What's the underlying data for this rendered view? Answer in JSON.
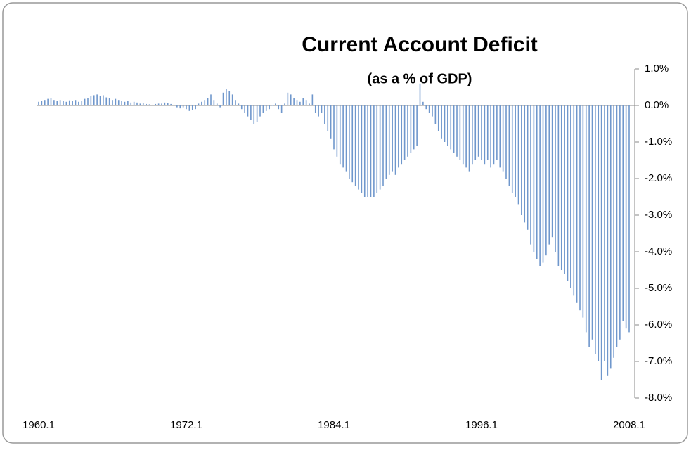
{
  "chart_data": {
    "type": "bar",
    "title": "Current Account Deficit",
    "subtitle": "(as a % of GDP)",
    "color": "#6f97cc",
    "categories": [
      "1960.1",
      null,
      null,
      null,
      null,
      null,
      null,
      null,
      null,
      null,
      null,
      null,
      null,
      null,
      null,
      null,
      null,
      null,
      null,
      null,
      null,
      null,
      null,
      null,
      null,
      null,
      null,
      null,
      null,
      null,
      null,
      null,
      null,
      null,
      null,
      null,
      null,
      null,
      null,
      null,
      null,
      null,
      null,
      null,
      null,
      null,
      null,
      null,
      "1972.1",
      null,
      null,
      null,
      null,
      null,
      null,
      null,
      null,
      null,
      null,
      null,
      null,
      null,
      null,
      null,
      null,
      null,
      null,
      null,
      null,
      null,
      null,
      null,
      null,
      null,
      null,
      null,
      null,
      null,
      null,
      null,
      null,
      null,
      null,
      null,
      null,
      null,
      null,
      null,
      null,
      null,
      null,
      null,
      null,
      null,
      null,
      null,
      "1984.1",
      null,
      null,
      null,
      null,
      null,
      null,
      null,
      null,
      null,
      null,
      null,
      null,
      null,
      null,
      null,
      null,
      null,
      null,
      null,
      null,
      null,
      null,
      null,
      null,
      null,
      null,
      null,
      null,
      null,
      null,
      null,
      null,
      null,
      null,
      null,
      null,
      null,
      null,
      null,
      null,
      null,
      null,
      null,
      null,
      null,
      null,
      null,
      "1996.1",
      null,
      null,
      null,
      null,
      null,
      null,
      null,
      null,
      null,
      null,
      null,
      null,
      null,
      null,
      null,
      null,
      null,
      null,
      null,
      null,
      null,
      null,
      null,
      null,
      null,
      null,
      null,
      null,
      null,
      null,
      null,
      null,
      null,
      null,
      null,
      null,
      null,
      null,
      null,
      null,
      null,
      null,
      null,
      null,
      null,
      null,
      null,
      "2008.1"
    ],
    "values": [
      0.1,
      0.12,
      0.15,
      0.18,
      0.2,
      0.15,
      0.12,
      0.15,
      0.12,
      0.1,
      0.14,
      0.12,
      0.15,
      0.1,
      0.12,
      0.18,
      0.2,
      0.25,
      0.28,
      0.3,
      0.25,
      0.28,
      0.22,
      0.2,
      0.15,
      0.18,
      0.15,
      0.12,
      0.1,
      0.12,
      0.08,
      0.1,
      0.08,
      0.05,
      0.06,
      0.04,
      0.03,
      0.02,
      0.04,
      0.05,
      0.05,
      0.08,
      0.06,
      0.04,
      0.02,
      -0.05,
      -0.08,
      -0.05,
      -0.1,
      -0.15,
      -0.12,
      -0.1,
      0.05,
      0.1,
      0.15,
      0.2,
      0.3,
      0.15,
      0.05,
      -0.05,
      0.35,
      0.45,
      0.4,
      0.3,
      0.15,
      0.05,
      -0.1,
      -0.2,
      -0.3,
      -0.4,
      -0.5,
      -0.45,
      -0.3,
      -0.2,
      -0.15,
      -0.1,
      0,
      0.05,
      -0.1,
      -0.2,
      0.05,
      0.35,
      0.3,
      0.2,
      0.15,
      0.1,
      0.2,
      0.15,
      0.05,
      0.3,
      -0.2,
      -0.3,
      -0.2,
      -0.5,
      -0.7,
      -0.9,
      -1.2,
      -1.4,
      -1.6,
      -1.7,
      -1.8,
      -2.0,
      -2.1,
      -2.2,
      -2.3,
      -2.4,
      -2.5,
      -2.5,
      -2.5,
      -2.5,
      -2.4,
      -2.3,
      -2.2,
      -2.0,
      -1.9,
      -1.8,
      -1.9,
      -1.7,
      -1.6,
      -1.5,
      -1.4,
      -1.3,
      -1.2,
      -1.1,
      0.6,
      0.1,
      -0.1,
      -0.2,
      -0.3,
      -0.5,
      -0.7,
      -0.9,
      -1.0,
      -1.1,
      -1.2,
      -1.3,
      -1.4,
      -1.5,
      -1.6,
      -1.7,
      -1.8,
      -1.6,
      -1.5,
      -1.4,
      -1.5,
      -1.6,
      -1.5,
      -1.7,
      -1.6,
      -1.5,
      -1.7,
      -1.8,
      -2.0,
      -2.2,
      -2.4,
      -2.5,
      -2.7,
      -3.0,
      -3.2,
      -3.4,
      -3.8,
      -4.0,
      -4.2,
      -4.4,
      -4.3,
      -4.1,
      -3.8,
      -3.6,
      -4.0,
      -4.4,
      -4.5,
      -4.6,
      -4.8,
      -5.0,
      -5.2,
      -5.4,
      -5.6,
      -5.8,
      -6.2,
      -6.6,
      -6.4,
      -6.8,
      -7.0,
      -7.5,
      -7.0,
      -7.4,
      -7.2,
      -6.9,
      -6.6,
      -6.4,
      -5.9,
      -6.1,
      -6.2
    ],
    "ylim": [
      -8,
      1
    ],
    "yticks": [
      {
        "value": 1,
        "label": "1.0%"
      },
      {
        "value": 0,
        "label": "0.0%"
      },
      {
        "value": -1,
        "label": "-1.0%"
      },
      {
        "value": -2,
        "label": "-2.0%"
      },
      {
        "value": -3,
        "label": "-3.0%"
      },
      {
        "value": -4,
        "label": "-4.0%"
      },
      {
        "value": -5,
        "label": "-5.0%"
      },
      {
        "value": -6,
        "label": "-6.0%"
      },
      {
        "value": -7,
        "label": "-7.0%"
      },
      {
        "value": -8,
        "label": "-8.0%"
      }
    ]
  }
}
